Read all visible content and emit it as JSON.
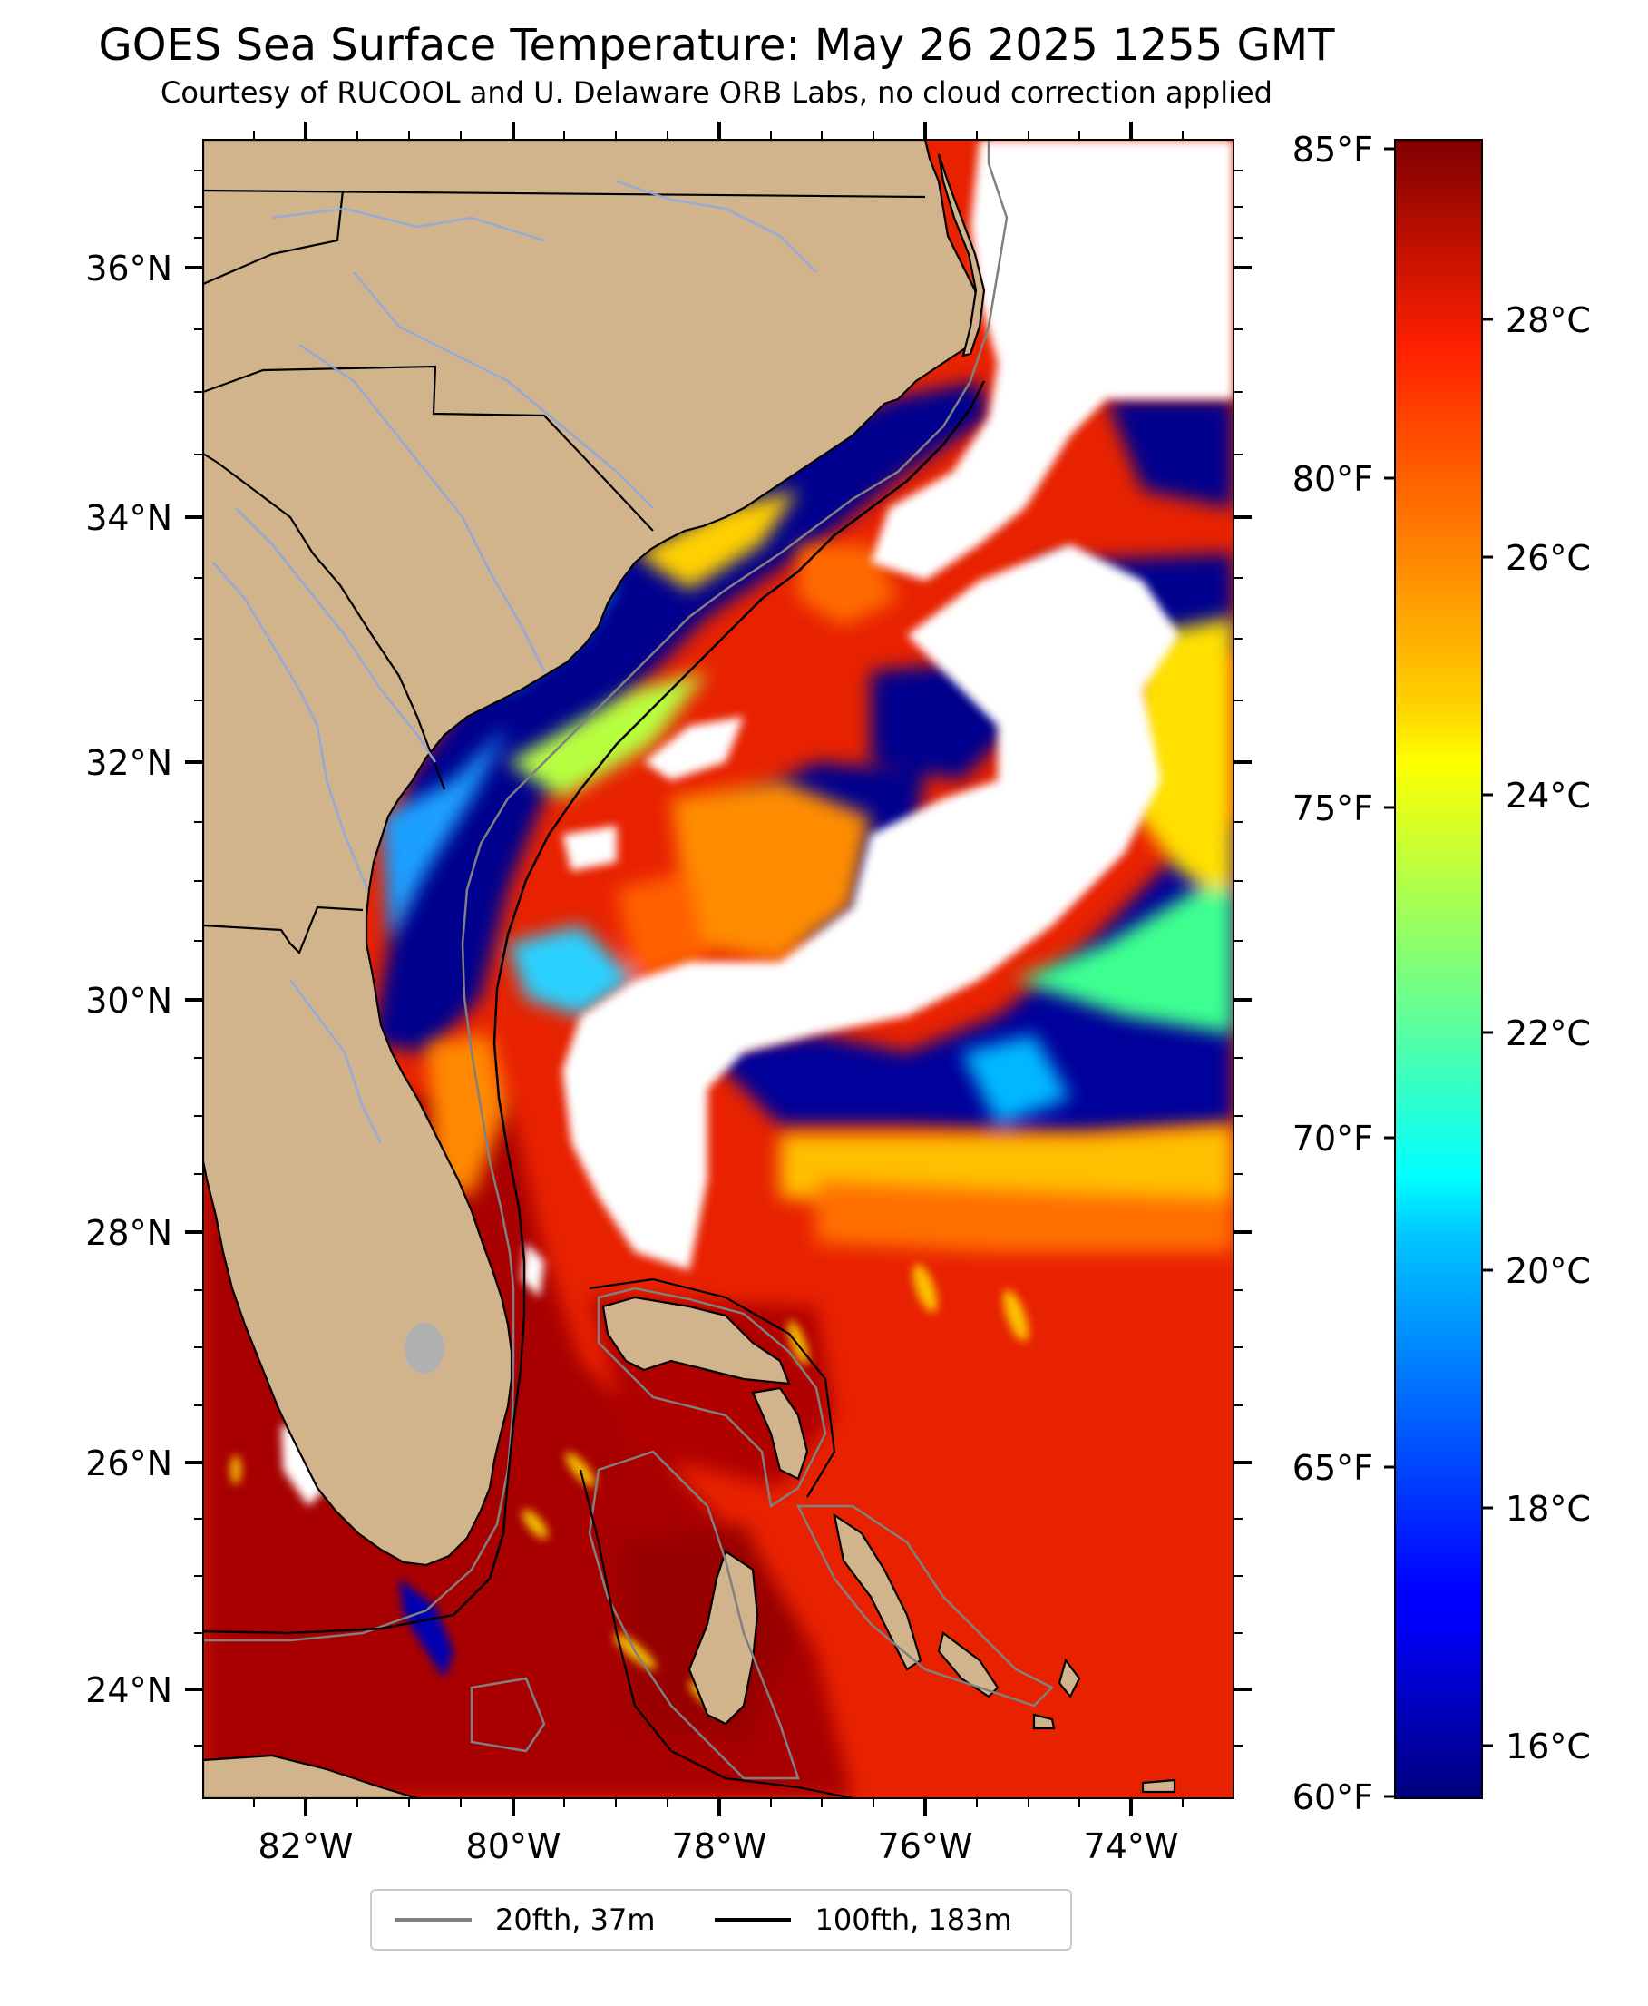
{
  "title": "GOES Sea Surface Temperature: May 26 2025 1255 GMT",
  "subtitle": "Courtesy of RUCOOL and U. Delaware ORB Labs, no cloud correction applied",
  "map": {
    "lon_range": [
      -83.0,
      -73.0
    ],
    "lat_range": [
      23.1,
      37.0
    ],
    "lat_ticks": [
      "36°N",
      "34°N",
      "32°N",
      "30°N",
      "28°N",
      "26°N",
      "24°N"
    ],
    "lon_ticks": [
      "82°W",
      "80°W",
      "78°W",
      "76°W",
      "74°W"
    ],
    "land_color": "#d2b48c",
    "cloud_color": "#ffffff",
    "isobath_colors": {
      "20fth": "#808080",
      "100fth": "#000000"
    }
  },
  "colorbar": {
    "colormap": "jet",
    "range_celsius": [
      15.6,
      29.4
    ],
    "celsius_ticks": [
      "28°C",
      "26°C",
      "24°C",
      "22°C",
      "20°C",
      "18°C",
      "16°C"
    ],
    "fahrenheit_ticks": [
      "85°F",
      "80°F",
      "75°F",
      "70°F",
      "65°F",
      "60°F"
    ]
  },
  "legend": [
    {
      "label": "20fth, 37m",
      "color": "#808080"
    },
    {
      "label": "100fth, 183m",
      "color": "#000000"
    }
  ]
}
